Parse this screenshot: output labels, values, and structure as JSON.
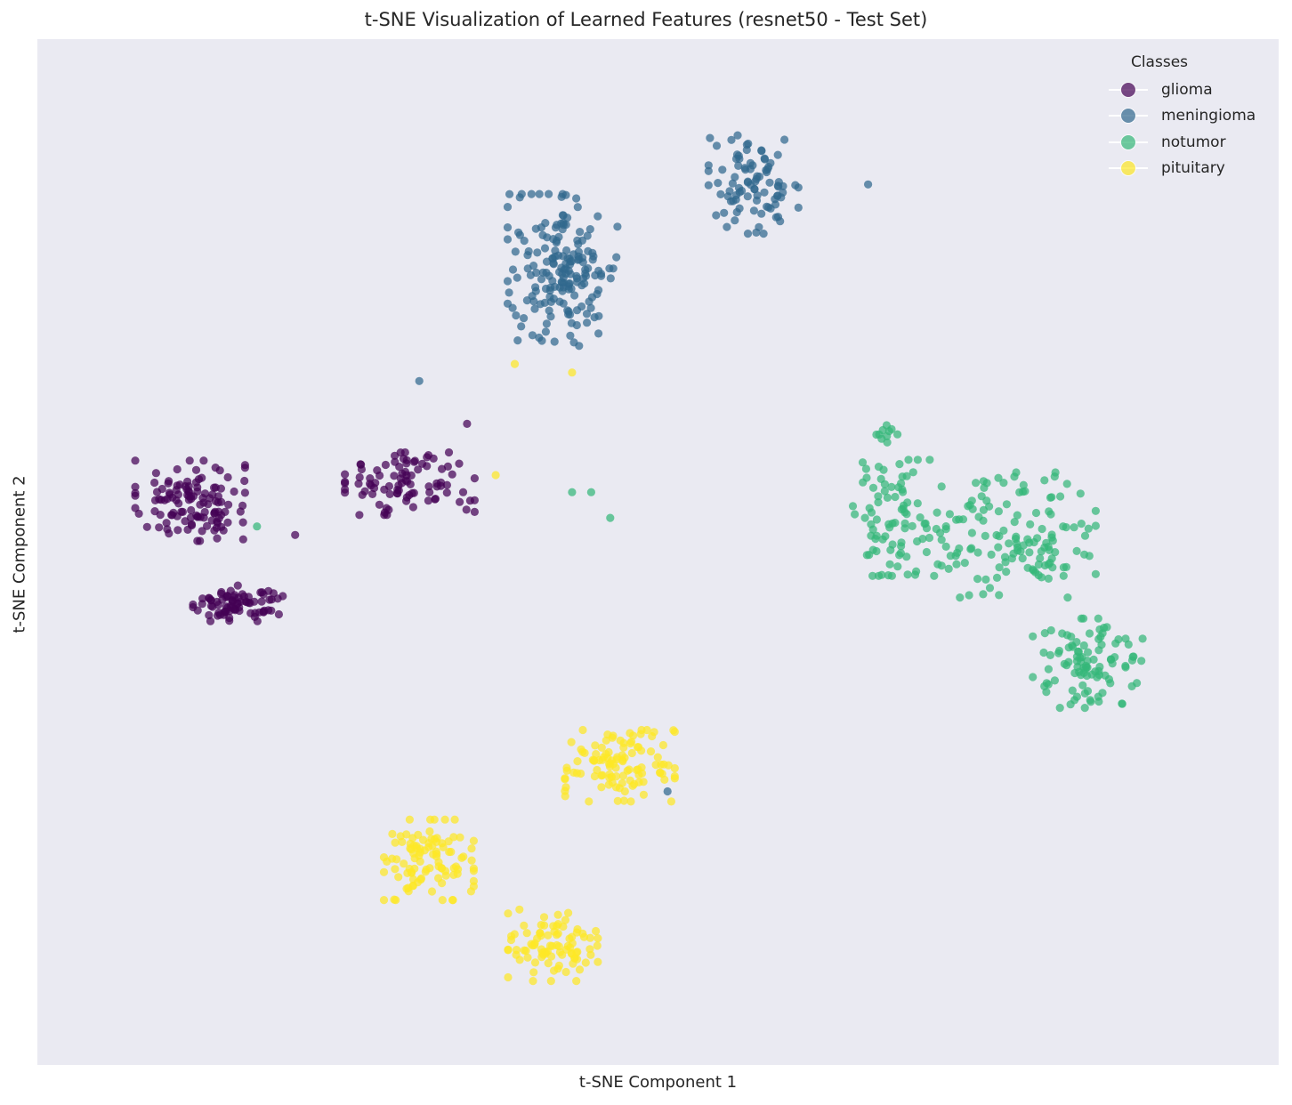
{
  "chart_data": {
    "type": "scatter",
    "title": "t-SNE Visualization of Learned Features (resnet50 - Test Set)",
    "xlabel": "t-SNE Component 1",
    "ylabel": "t-SNE Component 2",
    "xlim": [
      -65,
      65
    ],
    "ylim": [
      -60,
      60
    ],
    "grid": false,
    "background": "#eaeaf2",
    "legend": {
      "title": "Classes",
      "placement": "top-right",
      "entries": [
        {
          "label": "glioma",
          "color": "#440154"
        },
        {
          "label": "meningioma",
          "color": "#31688e"
        },
        {
          "label": "notumor",
          "color": "#35b779"
        },
        {
          "label": "pituitary",
          "color": "#fde725"
        }
      ]
    },
    "series": [
      {
        "name": "glioma",
        "color": "#440154",
        "clusters": [
          {
            "center": [
              -49,
              6
            ],
            "spread": [
              5.5,
              4.5
            ],
            "count": 120
          },
          {
            "center": [
              -44,
              -6
            ],
            "spread": [
              4.5,
              2.0
            ],
            "count": 80
          },
          {
            "center": [
              -26,
              8
            ],
            "spread": [
              6.5,
              3.5
            ],
            "count": 90
          }
        ],
        "points": [
          [
            -20,
            15
          ],
          [
            -22,
            10
          ],
          [
            -38,
            2
          ]
        ]
      },
      {
        "name": "meningioma",
        "color": "#31688e",
        "clusters": [
          {
            "center": [
              -10,
              33
            ],
            "spread": [
              5.5,
              8.5
            ],
            "count": 180
          },
          {
            "center": [
              10,
              43
            ],
            "spread": [
              4.5,
              5.5
            ],
            "count": 90
          }
        ],
        "points": [
          [
            -25,
            20
          ],
          [
            22,
            43
          ],
          [
            1,
            -28
          ]
        ]
      },
      {
        "name": "notumor",
        "color": "#35b779",
        "clusters": [
          {
            "center": [
              25,
              4
            ],
            "spread": [
              4.5,
              6.5
            ],
            "count": 90
          },
          {
            "center": [
              38,
              2
            ],
            "spread": [
              7.5,
              7.0
            ],
            "count": 130
          },
          {
            "center": [
              45,
              -13
            ],
            "spread": [
              5.5,
              5.0
            ],
            "count": 100
          },
          {
            "center": [
              24,
              14
            ],
            "spread": [
              1.5,
              1.2
            ],
            "count": 10
          }
        ],
        "points": [
          [
            -9,
            7
          ],
          [
            -7,
            7
          ],
          [
            -5,
            4
          ],
          [
            -42,
            3
          ]
        ]
      },
      {
        "name": "pituitary",
        "color": "#fde725",
        "clusters": [
          {
            "center": [
              -4,
              -25
            ],
            "spread": [
              5.5,
              4.0
            ],
            "count": 110
          },
          {
            "center": [
              -24,
              -36
            ],
            "spread": [
              4.5,
              4.5
            ],
            "count": 100
          },
          {
            "center": [
              -11,
              -46
            ],
            "spread": [
              4.5,
              4.0
            ],
            "count": 90
          }
        ],
        "points": [
          [
            -15,
            22
          ],
          [
            -9,
            21
          ],
          [
            -17,
            9
          ]
        ]
      }
    ]
  }
}
